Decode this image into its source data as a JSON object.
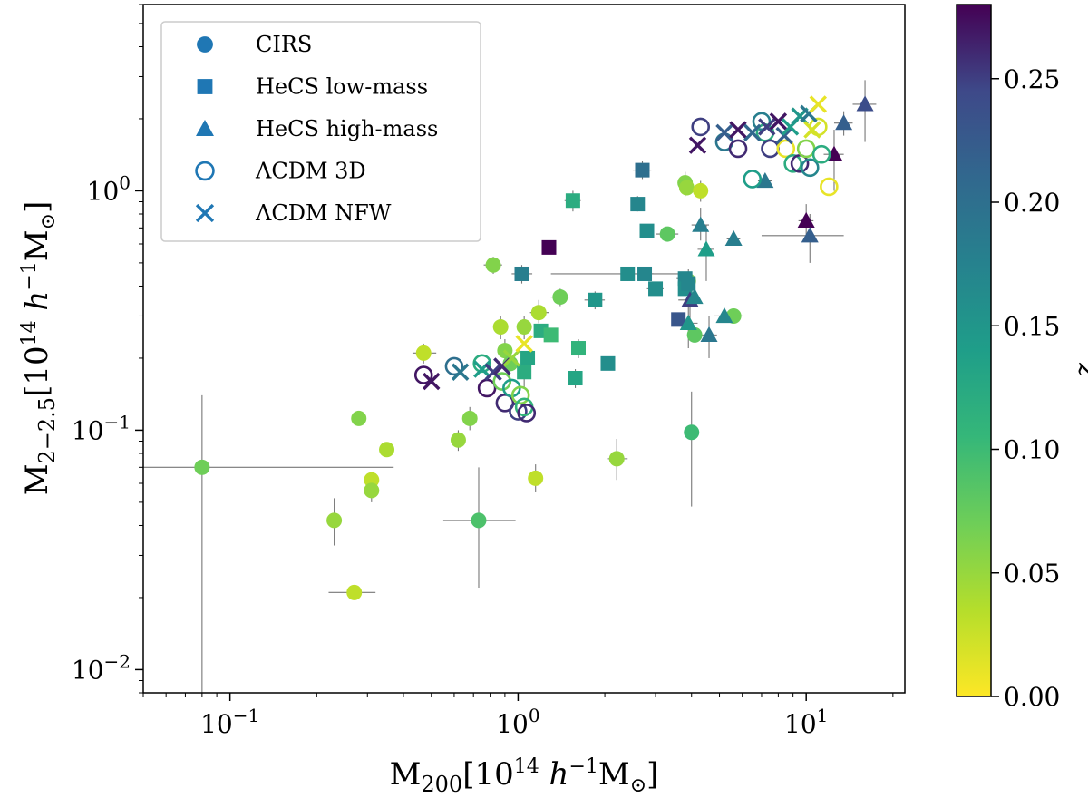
{
  "chart_data": {
    "type": "scatter",
    "xlabel": "M200[10^14 h^-1 M⊙]",
    "ylabel": "M2-2.5[10^14 h^-1 M⊙]",
    "xscale": "log",
    "yscale": "log",
    "xlim": [
      0.05,
      22
    ],
    "ylim": [
      0.008,
      6
    ],
    "x_ticks": [
      {
        "value": 0.1,
        "base": "10",
        "exp": "−1"
      },
      {
        "value": 1,
        "base": "10",
        "exp": "0"
      },
      {
        "value": 10,
        "base": "10",
        "exp": "1"
      }
    ],
    "y_ticks": [
      {
        "value": 0.01,
        "base": "10",
        "exp": "−2"
      },
      {
        "value": 0.1,
        "base": "10",
        "exp": "−1"
      },
      {
        "value": 1,
        "base": "10",
        "exp": "0"
      }
    ],
    "colorbar": {
      "label": "z",
      "range": [
        0.0,
        0.28
      ],
      "colormap": "viridis_r",
      "ticks": [
        "0.00",
        "0.05",
        "0.10",
        "0.15",
        "0.20",
        "0.25"
      ]
    },
    "legend": {
      "placement": "top-left",
      "entries": [
        {
          "marker": "circle",
          "label": "CIRS"
        },
        {
          "marker": "square",
          "label": "HeCS low-mass"
        },
        {
          "marker": "triangle",
          "label": "HeCS high-mass"
        },
        {
          "marker": "open-circle",
          "label": "ΛCDM 3D"
        },
        {
          "marker": "x",
          "label": "ΛCDM NFW"
        }
      ]
    },
    "series": [
      {
        "name": "CIRS",
        "marker": "circle",
        "points": [
          {
            "x": 0.08,
            "y": 0.07,
            "z": 0.07,
            "xerr": [
              0.05,
              0.37
            ],
            "yerr": [
              0.003,
              0.14
            ]
          },
          {
            "x": 0.23,
            "y": 0.042,
            "z": 0.05,
            "yerr": [
              0.033,
              0.052
            ]
          },
          {
            "x": 0.27,
            "y": 0.021,
            "z": 0.03,
            "xerr": [
              0.22,
              0.32
            ]
          },
          {
            "x": 0.28,
            "y": 0.112,
            "z": 0.06
          },
          {
            "x": 0.31,
            "y": 0.062,
            "z": 0.03
          },
          {
            "x": 0.31,
            "y": 0.056,
            "z": 0.05,
            "yerr": [
              0.05,
              0.062
            ]
          },
          {
            "x": 0.35,
            "y": 0.083,
            "z": 0.04,
            "xerr": [
              0.33,
              0.37
            ]
          },
          {
            "x": 0.47,
            "y": 0.21,
            "z": 0.03,
            "xerr": [
              0.43,
              0.52
            ],
            "yerr": [
              0.19,
              0.23
            ]
          },
          {
            "x": 0.62,
            "y": 0.091,
            "z": 0.05,
            "xerr": [
              0.6,
              0.65
            ],
            "yerr": [
              0.082,
              0.1
            ]
          },
          {
            "x": 0.68,
            "y": 0.112,
            "z": 0.06,
            "xerr": [
              0.65,
              0.72
            ],
            "yerr": [
              0.1,
              0.125
            ]
          },
          {
            "x": 0.73,
            "y": 0.042,
            "z": 0.09,
            "xerr": [
              0.55,
              0.98
            ],
            "yerr": [
              0.022,
              0.07
            ]
          },
          {
            "x": 0.82,
            "y": 0.49,
            "z": 0.06,
            "xerr": [
              0.76,
              0.88
            ],
            "yerr": [
              0.45,
              0.53
            ]
          },
          {
            "x": 0.87,
            "y": 0.27,
            "z": 0.04,
            "xerr": [
              0.83,
              0.91
            ],
            "yerr": [
              0.24,
              0.3
            ]
          },
          {
            "x": 0.9,
            "y": 0.215,
            "z": 0.06,
            "xerr": [
              0.86,
              0.95
            ],
            "yerr": [
              0.19,
              0.24
            ]
          },
          {
            "x": 0.94,
            "y": 0.19,
            "z": 0.07
          },
          {
            "x": 1.05,
            "y": 0.27,
            "z": 0.05,
            "xerr": [
              1.0,
              1.1
            ],
            "yerr": [
              0.24,
              0.3
            ]
          },
          {
            "x": 1.15,
            "y": 0.063,
            "z": 0.03,
            "xerr": [
              1.1,
              1.2
            ],
            "yerr": [
              0.055,
              0.072
            ]
          },
          {
            "x": 1.18,
            "y": 0.31,
            "z": 0.04,
            "xerr": [
              1.1,
              1.28
            ],
            "yerr": [
              0.28,
              0.35
            ]
          },
          {
            "x": 1.4,
            "y": 0.36,
            "z": 0.07,
            "xerr": [
              1.3,
              1.5
            ],
            "yerr": [
              0.33,
              0.39
            ]
          },
          {
            "x": 2.2,
            "y": 0.076,
            "z": 0.05,
            "xerr": [
              2.05,
              2.4
            ],
            "yerr": [
              0.062,
              0.092
            ]
          },
          {
            "x": 3.3,
            "y": 0.66,
            "z": 0.08,
            "xerr": [
              3.0,
              3.6
            ]
          },
          {
            "x": 3.8,
            "y": 1.08,
            "z": 0.06,
            "xerr": [
              3.6,
              4.0
            ],
            "yerr": [
              0.95,
              1.2
            ]
          },
          {
            "x": 3.85,
            "y": 1.03,
            "z": 0.05
          },
          {
            "x": 3.9,
            "y": 0.42,
            "z": 0.06,
            "xerr": [
              3.7,
              4.1
            ],
            "yerr": [
              0.38,
              0.47
            ]
          },
          {
            "x": 4.0,
            "y": 0.098,
            "z": 0.1,
            "yerr": [
              0.048,
              0.145
            ]
          },
          {
            "x": 4.1,
            "y": 0.25,
            "z": 0.08,
            "xerr": [
              3.9,
              4.3
            ]
          },
          {
            "x": 4.3,
            "y": 1.0,
            "z": 0.03,
            "xerr": [
              4.15,
              4.45
            ],
            "yerr": [
              0.9,
              1.1
            ]
          },
          {
            "x": 5.6,
            "y": 0.3,
            "z": 0.07,
            "xerr": [
              5.2,
              6.0
            ]
          }
        ]
      },
      {
        "name": "HeCS low-mass",
        "marker": "square",
        "points": [
          {
            "x": 1.03,
            "y": 0.45,
            "z": 0.18,
            "xerr": [
              0.95,
              1.12
            ],
            "yerr": [
              0.41,
              0.49
            ]
          },
          {
            "x": 1.05,
            "y": 0.175,
            "z": 0.12,
            "xerr": [
              1.0,
              1.1
            ],
            "yerr": [
              0.15,
              0.21
            ]
          },
          {
            "x": 1.08,
            "y": 0.2,
            "z": 0.13
          },
          {
            "x": 1.2,
            "y": 0.26,
            "z": 0.12,
            "xerr": [
              1.15,
              1.28
            ]
          },
          {
            "x": 1.28,
            "y": 0.58,
            "z": 0.28
          },
          {
            "x": 1.3,
            "y": 0.25,
            "z": 0.1
          },
          {
            "x": 1.55,
            "y": 0.91,
            "z": 0.12,
            "xerr": [
              1.45,
              1.65
            ],
            "yerr": [
              0.82,
              1.0
            ]
          },
          {
            "x": 1.58,
            "y": 0.165,
            "z": 0.13,
            "xerr": [
              1.5,
              1.65
            ],
            "yerr": [
              0.15,
              0.18
            ]
          },
          {
            "x": 1.62,
            "y": 0.22,
            "z": 0.11,
            "xerr": [
              1.55,
              1.7
            ],
            "yerr": [
              0.2,
              0.24
            ]
          },
          {
            "x": 1.85,
            "y": 0.35,
            "z": 0.15,
            "xerr": [
              1.7,
              2.0
            ],
            "yerr": [
              0.32,
              0.38
            ]
          },
          {
            "x": 2.05,
            "y": 0.19,
            "z": 0.16
          },
          {
            "x": 2.4,
            "y": 0.45,
            "z": 0.16,
            "xerr": [
              1.3,
              3.6
            ],
            "yerr": [
              0.42,
              0.48
            ]
          },
          {
            "x": 2.6,
            "y": 0.88,
            "z": 0.17,
            "xerr": [
              2.5,
              2.7
            ],
            "yerr": [
              0.82,
              0.95
            ]
          },
          {
            "x": 2.7,
            "y": 1.22,
            "z": 0.2,
            "xerr": [
              2.5,
              2.9
            ],
            "yerr": [
              1.12,
              1.33
            ]
          },
          {
            "x": 2.75,
            "y": 0.45,
            "z": 0.17,
            "xerr": [
              2.6,
              2.95
            ]
          },
          {
            "x": 2.8,
            "y": 0.68,
            "z": 0.16,
            "xerr": [
              2.7,
              2.95
            ]
          },
          {
            "x": 3.0,
            "y": 0.39,
            "z": 0.16,
            "xerr": [
              2.8,
              3.2
            ]
          },
          {
            "x": 3.6,
            "y": 0.29,
            "z": 0.23,
            "xerr": [
              3.45,
              3.75
            ]
          },
          {
            "x": 3.8,
            "y": 0.43,
            "z": 0.17,
            "xerr": [
              3.55,
              4.1
            ]
          },
          {
            "x": 3.8,
            "y": 0.39,
            "z": 0.16
          },
          {
            "x": 3.9,
            "y": 0.41,
            "z": 0.17
          }
        ]
      },
      {
        "name": "HeCS high-mass",
        "marker": "triangle",
        "points": [
          {
            "x": 3.9,
            "y": 0.28,
            "z": 0.15,
            "xerr": [
              3.6,
              4.2
            ],
            "yerr": [
              0.22,
              0.35
            ]
          },
          {
            "x": 3.95,
            "y": 0.35,
            "z": 0.25,
            "xerr": [
              3.6,
              4.2
            ],
            "yerr": [
              0.28,
              0.42
            ]
          },
          {
            "x": 4.1,
            "y": 0.36,
            "z": 0.17
          },
          {
            "x": 4.3,
            "y": 0.72,
            "z": 0.18,
            "xerr": [
              4.0,
              4.6
            ],
            "yerr": [
              0.62,
              0.85
            ]
          },
          {
            "x": 4.5,
            "y": 0.57,
            "z": 0.14,
            "xerr": [
              4.2,
              4.8
            ],
            "yerr": [
              0.42,
              0.72
            ]
          },
          {
            "x": 4.6,
            "y": 0.25,
            "z": 0.19,
            "xerr": [
              4.3,
              4.9
            ],
            "yerr": [
              0.2,
              0.3
            ]
          },
          {
            "x": 5.2,
            "y": 0.3,
            "z": 0.17,
            "xerr": [
              4.8,
              5.6
            ]
          },
          {
            "x": 5.6,
            "y": 0.63,
            "z": 0.18,
            "xerr": [
              5.3,
              5.9
            ]
          },
          {
            "x": 7.2,
            "y": 1.1,
            "z": 0.19,
            "xerr": [
              6.8,
              7.6
            ]
          },
          {
            "x": 10.0,
            "y": 0.75,
            "z": 0.28,
            "xerr": [
              9.4,
              10.6
            ],
            "yerr": [
              0.65,
              0.88
            ]
          },
          {
            "x": 10.3,
            "y": 0.65,
            "z": 0.22,
            "xerr": [
              7.0,
              13.5
            ],
            "yerr": [
              0.5,
              0.8
            ]
          },
          {
            "x": 12.5,
            "y": 1.42,
            "z": 0.28,
            "xerr": [
              11.5,
              13.5
            ],
            "yerr": [
              1.0,
              1.8
            ]
          },
          {
            "x": 13.5,
            "y": 1.92,
            "z": 0.22,
            "xerr": [
              12.5,
              14.5
            ],
            "yerr": [
              1.7,
              2.15
            ]
          },
          {
            "x": 16.0,
            "y": 2.3,
            "z": 0.24,
            "xerr": [
              14.5,
              17.5
            ],
            "yerr": [
              1.6,
              2.9
            ]
          }
        ]
      },
      {
        "name": "ΛCDM 3D",
        "marker": "open-circle",
        "points": [
          {
            "x": 0.47,
            "y": 0.17,
            "z": 0.27
          },
          {
            "x": 0.6,
            "y": 0.185,
            "z": 0.2
          },
          {
            "x": 0.75,
            "y": 0.19,
            "z": 0.12
          },
          {
            "x": 0.78,
            "y": 0.15,
            "z": 0.27
          },
          {
            "x": 0.88,
            "y": 0.16,
            "z": 0.07
          },
          {
            "x": 0.9,
            "y": 0.13,
            "z": 0.26
          },
          {
            "x": 0.95,
            "y": 0.15,
            "z": 0.14
          },
          {
            "x": 1.0,
            "y": 0.12,
            "z": 0.25
          },
          {
            "x": 1.02,
            "y": 0.14,
            "z": 0.06
          },
          {
            "x": 1.05,
            "y": 0.125,
            "z": 0.11
          },
          {
            "x": 1.07,
            "y": 0.118,
            "z": 0.26
          },
          {
            "x": 4.3,
            "y": 1.85,
            "z": 0.25
          },
          {
            "x": 5.2,
            "y": 1.6,
            "z": 0.19
          },
          {
            "x": 5.8,
            "y": 1.5,
            "z": 0.26
          },
          {
            "x": 6.5,
            "y": 1.12,
            "z": 0.14
          },
          {
            "x": 7.0,
            "y": 1.95,
            "z": 0.18
          },
          {
            "x": 7.2,
            "y": 1.75,
            "z": 0.12
          },
          {
            "x": 7.5,
            "y": 1.5,
            "z": 0.25
          },
          {
            "x": 8.5,
            "y": 1.5,
            "z": 0.01
          },
          {
            "x": 9.0,
            "y": 1.3,
            "z": 0.12
          },
          {
            "x": 9.5,
            "y": 1.3,
            "z": 0.26
          },
          {
            "x": 10.0,
            "y": 1.5,
            "z": 0.06
          },
          {
            "x": 10.3,
            "y": 1.25,
            "z": 0.17
          },
          {
            "x": 11.0,
            "y": 1.85,
            "z": 0.02
          },
          {
            "x": 11.3,
            "y": 1.42,
            "z": 0.12
          },
          {
            "x": 12.0,
            "y": 1.04,
            "z": 0.01
          }
        ]
      },
      {
        "name": "ΛCDM NFW",
        "marker": "x",
        "points": [
          {
            "x": 0.5,
            "y": 0.16,
            "z": 0.27
          },
          {
            "x": 0.63,
            "y": 0.175,
            "z": 0.19
          },
          {
            "x": 0.75,
            "y": 0.18,
            "z": 0.14
          },
          {
            "x": 0.82,
            "y": 0.175,
            "z": 0.25
          },
          {
            "x": 0.88,
            "y": 0.185,
            "z": 0.26
          },
          {
            "x": 0.95,
            "y": 0.2,
            "z": 0.05
          },
          {
            "x": 1.05,
            "y": 0.23,
            "z": 0.01
          },
          {
            "x": 4.2,
            "y": 1.55,
            "z": 0.27
          },
          {
            "x": 5.2,
            "y": 1.75,
            "z": 0.22
          },
          {
            "x": 5.8,
            "y": 1.8,
            "z": 0.27
          },
          {
            "x": 6.5,
            "y": 1.75,
            "z": 0.21
          },
          {
            "x": 7.3,
            "y": 1.85,
            "z": 0.25
          },
          {
            "x": 8.0,
            "y": 1.95,
            "z": 0.27
          },
          {
            "x": 8.4,
            "y": 1.7,
            "z": 0.22
          },
          {
            "x": 8.8,
            "y": 1.85,
            "z": 0.14
          },
          {
            "x": 9.5,
            "y": 2.05,
            "z": 0.15
          },
          {
            "x": 10.2,
            "y": 2.1,
            "z": 0.19
          },
          {
            "x": 10.5,
            "y": 1.8,
            "z": 0.02
          },
          {
            "x": 11.0,
            "y": 2.3,
            "z": 0.01
          }
        ]
      }
    ]
  }
}
